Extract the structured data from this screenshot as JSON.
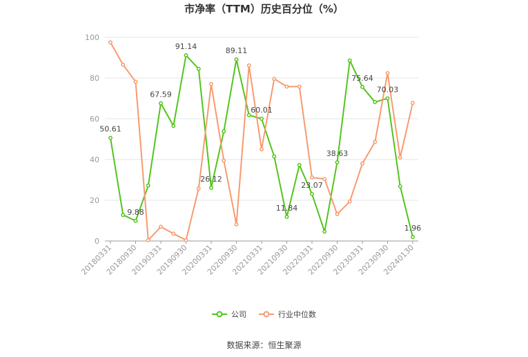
{
  "chart_data": {
    "type": "line",
    "title": "市净率（TTM）历史百分位（%）",
    "xlabel": "",
    "ylabel": "",
    "ylim": [
      0,
      100
    ],
    "yticks": [
      0,
      20,
      40,
      60,
      80,
      100
    ],
    "grid": true,
    "legend_position": "bottom",
    "x": [
      "20180331",
      "20180630",
      "20180930",
      "20181231",
      "20190331",
      "20190630",
      "20190930",
      "20191231",
      "20200331",
      "20200630",
      "20200930",
      "20201231",
      "20210331",
      "20210630",
      "20210930",
      "20211231",
      "20220331",
      "20220630",
      "20220930",
      "20221231",
      "20230331",
      "20230630",
      "20230930",
      "20231231",
      "20240130"
    ],
    "xtick_labels": [
      "20180331",
      "20180930",
      "20190331",
      "20190930",
      "20200331",
      "20200930",
      "20210331",
      "20210930",
      "20220331",
      "20220930",
      "20230331",
      "20230930",
      "20240130"
    ],
    "series": [
      {
        "name": "公司",
        "color": "#52c41a",
        "values": [
          50.61,
          12.8,
          9.88,
          27.2,
          67.59,
          56.5,
          91.14,
          84.5,
          26.12,
          53.8,
          89.11,
          61.8,
          60.01,
          41.5,
          11.84,
          37.3,
          23.07,
          4.6,
          38.63,
          88.6,
          75.64,
          68.2,
          70.03,
          26.8,
          1.96
        ],
        "labels": {
          "0": "50.61",
          "2": "9.88",
          "4": "67.59",
          "6": "91.14",
          "8": "26.12",
          "10": "89.11",
          "12": "60.01",
          "14": "11.84",
          "16": "23.07",
          "18": "38.63",
          "20": "75.64",
          "22": "70.03",
          "24": "1.96"
        }
      },
      {
        "name": "行业中位数",
        "color": "#f79a6e",
        "values": [
          97.5,
          86.5,
          78.2,
          0.4,
          7.0,
          3.6,
          0.4,
          25.8,
          77.0,
          39.5,
          8.2,
          86.2,
          45.0,
          79.6,
          75.8,
          75.8,
          31.2,
          30.4,
          13.2,
          19.4,
          38.0,
          48.6,
          82.4,
          41.0,
          67.8
        ]
      }
    ]
  },
  "legend": {
    "company": "公司",
    "industry": "行业中位数"
  },
  "source": "数据来源：恒生聚源"
}
